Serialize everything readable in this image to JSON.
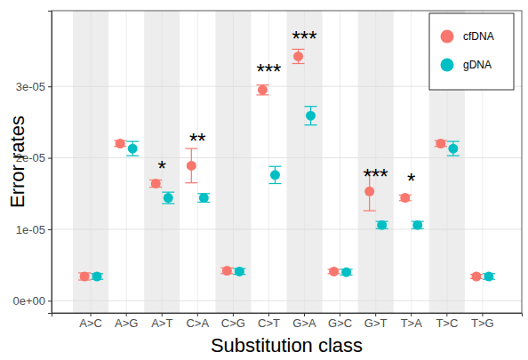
{
  "chart_data": {
    "type": "scatter",
    "x_label": "Substitution class",
    "y_label": "Error rates",
    "categories": [
      "A>C",
      "A>G",
      "A>T",
      "C>A",
      "C>G",
      "C>T",
      "G>A",
      "G>C",
      "G>T",
      "T>A",
      "T>C",
      "T>G"
    ],
    "series": [
      {
        "name": "cfDNA",
        "color": "#F8766D",
        "values": [
          3.4e-06,
          2.2e-05,
          1.64e-05,
          1.89e-05,
          4.2e-06,
          2.95e-05,
          3.42e-05,
          4.1e-06,
          1.53e-05,
          1.44e-05,
          2.2e-05,
          3.4e-06
        ],
        "errors": [
          5e-07,
          4e-07,
          5e-07,
          2.4e-06,
          4e-07,
          7e-07,
          1e-06,
          3e-07,
          2.7e-06,
          4e-07,
          4e-07,
          3e-07
        ]
      },
      {
        "name": "gDNA",
        "color": "#00BFC4",
        "values": [
          3.4e-06,
          2.13e-05,
          1.44e-05,
          1.44e-05,
          4.1e-06,
          1.76e-05,
          2.59e-05,
          4e-06,
          1.06e-05,
          1.06e-05,
          2.13e-05,
          3.4e-06
        ],
        "errors": [
          4e-07,
          1e-06,
          8e-07,
          6e-07,
          4e-07,
          1.2e-06,
          1.3e-06,
          4e-07,
          5e-07,
          5e-07,
          1e-06,
          4e-07
        ]
      }
    ],
    "ylim": [
      -1.7e-06,
      4.06e-05
    ],
    "yticks": [
      {
        "value": 0,
        "label": "0e+00"
      },
      {
        "value": 1e-05,
        "label": "1e-05"
      },
      {
        "value": 2e-05,
        "label": "2e-05"
      },
      {
        "value": 3e-05,
        "label": "3e-05"
      }
    ],
    "grid": true,
    "legend": "top-right",
    "marker": "circle",
    "annotations": [
      {
        "category": "A>T",
        "y": 1.9e-05,
        "text": "*"
      },
      {
        "category": "C>A",
        "y": 2.28e-05,
        "text": "**"
      },
      {
        "category": "C>T",
        "y": 3.25e-05,
        "text": "***"
      },
      {
        "category": "G>A",
        "y": 3.71e-05,
        "text": "***"
      },
      {
        "category": "G>T",
        "y": 1.78e-05,
        "text": "***"
      },
      {
        "category": "T>A",
        "y": 1.72e-05,
        "text": "*"
      }
    ]
  }
}
